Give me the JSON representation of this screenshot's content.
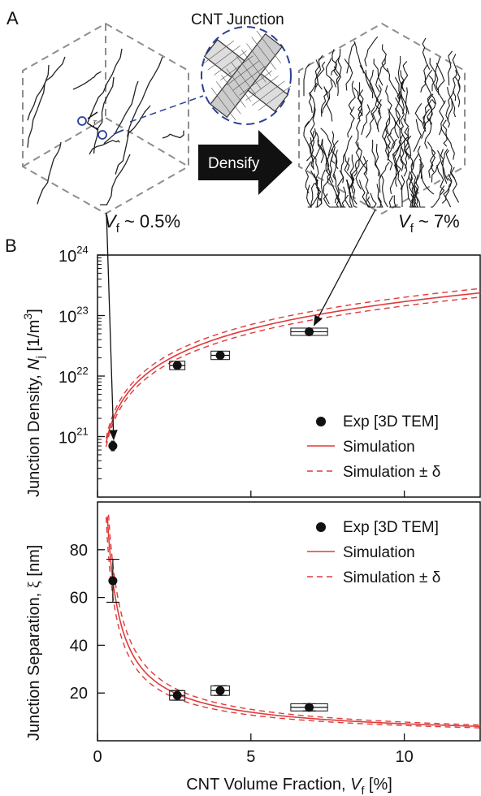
{
  "figure": {
    "panel_a_label": "A",
    "panel_b_label": "B",
    "junction_title": "CNT Junction",
    "xi_symbol": "ξ",
    "densify_label": "Densify",
    "vf_low_label": {
      "v": "V",
      "sub": "f",
      "rest": " ~ 0.5%"
    },
    "vf_high_label": {
      "v": "V",
      "sub": "f",
      "rest": " ~ 7%"
    },
    "colors": {
      "sim": "#e03a3a",
      "marker": "#111111",
      "dashed_box": "#8e8e8e",
      "junction_circle": "#2b3f99"
    }
  },
  "chart_data": [
    {
      "type": "scatter",
      "yscale": "log",
      "ylabel": {
        "main": "Junction Density, ",
        "symbol": "N",
        "sub": "j",
        "unit": " [1/m",
        "sup": "3",
        "close": "]"
      },
      "xlim": [
        0,
        12.5
      ],
      "ylim_exp": [
        20,
        24
      ],
      "ytick_labels": [
        {
          "base": "10",
          "exp": "21"
        },
        {
          "base": "10",
          "exp": "22"
        },
        {
          "base": "10",
          "exp": "23"
        },
        {
          "base": "10",
          "exp": "24"
        }
      ],
      "ytick_exps": [
        21,
        22,
        23,
        24
      ],
      "legend": {
        "position": "bottom-right",
        "entries": [
          "Exp [3D TEM]",
          "Simulation",
          "Simulation ± δ"
        ]
      },
      "experimental": {
        "x": [
          0.5,
          2.6,
          4.0,
          6.9
        ],
        "y": [
          7e+20,
          1.5e+22,
          2.2e+22,
          5.4e+22
        ],
        "x_err": [
          0.05,
          0.25,
          0.3,
          0.6
        ],
        "y_err_log": [
          0.08,
          0.07,
          0.07,
          0.06
        ]
      },
      "simulation_model": "N = 1.7e23 * (V/10)^1.5"
    },
    {
      "type": "scatter",
      "ylabel": {
        "main": "Junction Separation, ",
        "symbol": "ξ",
        "unit": " [nm]"
      },
      "xlabel": {
        "main": "CNT Volume Fraction, ",
        "symbol": "V",
        "sub": "f",
        "unit": " [%]"
      },
      "xlim": [
        0,
        12.5
      ],
      "ylim": [
        0,
        100
      ],
      "xticks": [
        0,
        5,
        10
      ],
      "yticks": [
        20,
        40,
        60,
        80
      ],
      "legend": {
        "position": "top-right",
        "entries": [
          "Exp [3D TEM]",
          "Simulation",
          "Simulation ± δ"
        ]
      },
      "experimental": {
        "x": [
          0.5,
          2.6,
          4.0,
          6.9
        ],
        "y": [
          67,
          19,
          21,
          14
        ],
        "x_err": [
          0.05,
          0.25,
          0.3,
          0.6
        ],
        "y_err": [
          9,
          2,
          2,
          1.5
        ]
      },
      "simulation_model": "xi = 40 / V^0.75"
    }
  ]
}
